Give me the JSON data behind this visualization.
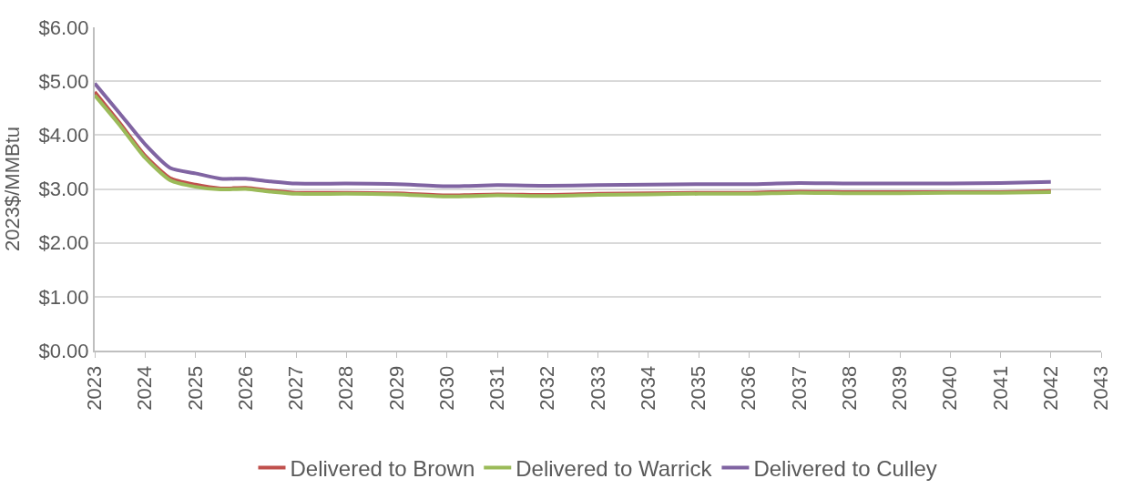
{
  "chart_data": {
    "type": "line",
    "ylabel": "2023$/MMBtu",
    "x": [
      2023,
      2023.5,
      2024,
      2024.5,
      2025,
      2025.5,
      2026,
      2026.5,
      2027,
      2028,
      2029,
      2030,
      2031,
      2032,
      2033,
      2034,
      2035,
      2036,
      2037,
      2038,
      2039,
      2040,
      2041,
      2042
    ],
    "series": [
      {
        "name": "Delivered to Brown",
        "color": "#c0504d",
        "values": [
          4.8,
          4.22,
          3.62,
          3.2,
          3.08,
          3.01,
          3.02,
          2.97,
          2.93,
          2.93,
          2.92,
          2.88,
          2.9,
          2.89,
          2.91,
          2.92,
          2.93,
          2.93,
          2.95,
          2.94,
          2.94,
          2.94,
          2.94,
          2.96
        ]
      },
      {
        "name": "Delivered to Warrick",
        "color": "#9bbb59",
        "values": [
          4.74,
          4.18,
          3.58,
          3.16,
          3.04,
          2.99,
          3.0,
          2.95,
          2.91,
          2.91,
          2.9,
          2.86,
          2.88,
          2.87,
          2.89,
          2.9,
          2.91,
          2.91,
          2.93,
          2.92,
          2.92,
          2.93,
          2.93,
          2.94
        ]
      },
      {
        "name": "Delivered to Culley",
        "color": "#8064a2",
        "values": [
          4.96,
          4.4,
          3.83,
          3.39,
          3.29,
          3.19,
          3.19,
          3.14,
          3.1,
          3.1,
          3.09,
          3.05,
          3.07,
          3.06,
          3.07,
          3.08,
          3.09,
          3.09,
          3.11,
          3.1,
          3.1,
          3.1,
          3.11,
          3.13
        ]
      }
    ],
    "xlim": [
      2023,
      2043
    ],
    "xticks": [
      2023,
      2024,
      2025,
      2026,
      2027,
      2028,
      2029,
      2030,
      2031,
      2032,
      2033,
      2034,
      2035,
      2036,
      2037,
      2038,
      2039,
      2040,
      2041,
      2042,
      2043
    ],
    "ylim": [
      0,
      6
    ],
    "yticks": [
      {
        "value": 0,
        "label": "$0.00"
      },
      {
        "value": 1,
        "label": "$1.00"
      },
      {
        "value": 2,
        "label": "$2.00"
      },
      {
        "value": 3,
        "label": "$3.00"
      },
      {
        "value": 4,
        "label": "$4.00"
      },
      {
        "value": 5,
        "label": "$5.00"
      },
      {
        "value": 6,
        "label": "$6.00"
      }
    ],
    "grid": "y",
    "legend": "bottom",
    "marker": "none",
    "line_style": "solid"
  }
}
